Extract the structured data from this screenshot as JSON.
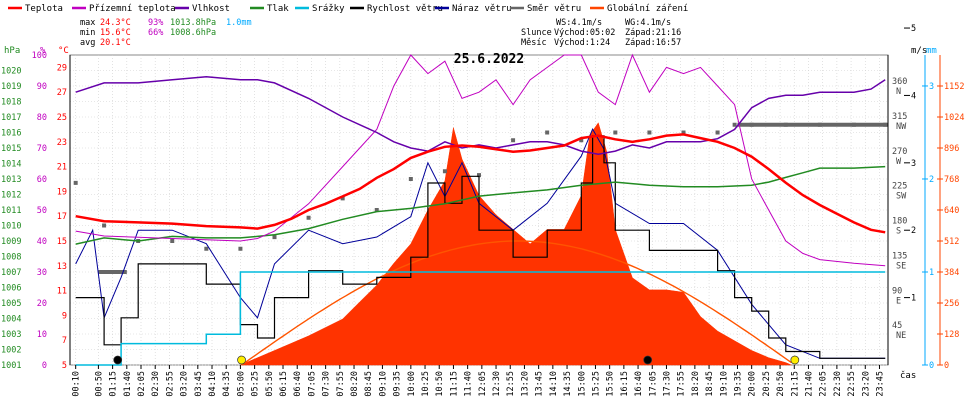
{
  "chart_data": {
    "type": "line",
    "title": "25.6.2022",
    "x_axis": {
      "label": "čas",
      "ticks": [
        "00:10",
        "00:50",
        "01:15",
        "01:40",
        "02:05",
        "02:30",
        "02:55",
        "03:20",
        "03:45",
        "04:10",
        "04:35",
        "05:00",
        "05:25",
        "05:50",
        "06:15",
        "06:40",
        "07:05",
        "07:30",
        "07:55",
        "08:20",
        "08:45",
        "09:10",
        "09:35",
        "10:00",
        "10:25",
        "10:50",
        "11:15",
        "11:40",
        "12:05",
        "12:30",
        "12:55",
        "13:20",
        "13:45",
        "14:10",
        "14:35",
        "15:00",
        "15:25",
        "15:50",
        "16:15",
        "16:40",
        "17:05",
        "17:30",
        "17:55",
        "18:20",
        "18:45",
        "19:10",
        "19:35",
        "20:00",
        "20:25",
        "20:50",
        "21:15",
        "21:40",
        "22:05",
        "22:30",
        "22:55",
        "23:20",
        "23:45"
      ]
    },
    "axes": {
      "pressure": {
        "label": "hPa",
        "color": "#228B22",
        "range": [
          1001,
          1021
        ],
        "ticks": [
          "1001",
          "1002",
          "1003",
          "1004",
          "1005",
          "1006",
          "1007",
          "1008",
          "1009",
          "1010",
          "1011",
          "1012",
          "1013",
          "1014",
          "1015",
          "1016",
          "1017",
          "1018",
          "1019",
          "1020"
        ]
      },
      "humidity": {
        "label": "%",
        "color": "#c000c0",
        "range": [
          0,
          100
        ],
        "ticks": [
          "0",
          "10",
          "20",
          "30",
          "40",
          "50",
          "60",
          "70",
          "80",
          "90",
          "100"
        ]
      },
      "temperature": {
        "label": "°C",
        "color": "#ff0000",
        "range": [
          5,
          30
        ],
        "ticks": [
          "5",
          "7",
          "9",
          "11",
          "13",
          "15",
          "17",
          "19",
          "21",
          "23",
          "25",
          "27",
          "29"
        ]
      },
      "wind_dir": {
        "ticks": [
          "360 N",
          "315 NW",
          "270 W",
          "225 SW",
          "180 S",
          "135 SE",
          "90 E",
          "45 NE"
        ]
      },
      "wind_speed": {
        "label": "m/s",
        "ticks": [
          "1",
          "2",
          "3",
          "4",
          "5"
        ]
      },
      "precip": {
        "label": "mm",
        "color": "#00aaff",
        "ticks": [
          "0",
          "1",
          "2",
          "3"
        ]
      },
      "radiation": {
        "color": "#ff4500",
        "ticks": [
          "0",
          "128",
          "256",
          "384",
          "512",
          "640",
          "768",
          "896",
          "1024",
          "1152"
        ]
      }
    },
    "legend": [
      {
        "name": "Teplota",
        "color": "#ff0000"
      },
      {
        "name": "Přízemní teplota",
        "color": "#c000c0"
      },
      {
        "name": "Vlhkost",
        "color": "#6600aa"
      },
      {
        "name": "Tlak",
        "color": "#228B22"
      },
      {
        "name": "Srážky",
        "color": "#00bbdd"
      },
      {
        "name": "Rychlost větru",
        "color": "#000000"
      },
      {
        "name": "Náraz větru",
        "color": "#000099"
      },
      {
        "name": "Směr větru",
        "color": "#666666"
      },
      {
        "name": "Globální záření",
        "color": "#ff4500"
      }
    ],
    "stats": [
      [
        "max",
        "24.3°C",
        "93%",
        "1013.8hPa",
        "1.0mm"
      ],
      [
        "min",
        "15.6°C",
        "66%",
        "1008.6hPa",
        ""
      ],
      [
        "avg",
        "20.1°C",
        "",
        "",
        ""
      ]
    ],
    "wind_info": {
      "ws": "WS:4.1m/s",
      "wg": "WG:4.1m/s"
    },
    "sun_moon": {
      "sun": {
        "label": "Slunce",
        "rise": "Východ:05:02",
        "set": "Západ:21:16"
      },
      "moon": {
        "label": "Měsíc",
        "rise": "Východ:1:24",
        "set": "Západ:16:57"
      }
    },
    "series": [
      {
        "name": "Teplota",
        "unit": "°C",
        "x": [
          "00:10",
          "01:00",
          "02:00",
          "03:00",
          "04:00",
          "05:00",
          "05:30",
          "06:00",
          "06:30",
          "07:00",
          "07:30",
          "08:00",
          "08:30",
          "09:00",
          "09:30",
          "10:00",
          "10:30",
          "11:00",
          "11:30",
          "12:00",
          "12:30",
          "13:00",
          "13:30",
          "14:00",
          "14:30",
          "15:00",
          "15:30",
          "16:00",
          "16:30",
          "17:00",
          "17:30",
          "18:00",
          "18:30",
          "19:00",
          "19:30",
          "20:00",
          "20:30",
          "21:00",
          "21:30",
          "22:00",
          "22:30",
          "23:00",
          "23:30",
          "23:55"
        ],
        "values": [
          17.0,
          16.6,
          16.5,
          16.4,
          16.2,
          16.1,
          16.0,
          16.3,
          16.8,
          17.5,
          18.0,
          18.6,
          19.2,
          20.1,
          20.8,
          21.7,
          22.2,
          22.6,
          22.7,
          22.6,
          22.4,
          22.2,
          22.3,
          22.5,
          22.7,
          23.3,
          23.5,
          23.2,
          23.0,
          23.2,
          23.5,
          23.6,
          23.3,
          23.0,
          22.5,
          21.8,
          20.8,
          19.7,
          18.7,
          17.9,
          17.2,
          16.5,
          15.9,
          15.7
        ]
      },
      {
        "name": "Přízemní teplota",
        "unit": "°C",
        "x": [
          "00:10",
          "01:00",
          "02:00",
          "03:00",
          "04:00",
          "05:00",
          "05:30",
          "06:00",
          "07:00",
          "08:00",
          "09:00",
          "09:30",
          "10:00",
          "10:30",
          "11:00",
          "11:30",
          "12:00",
          "12:30",
          "13:00",
          "13:30",
          "14:00",
          "14:30",
          "15:00",
          "15:30",
          "16:00",
          "16:30",
          "17:00",
          "17:30",
          "18:00",
          "18:30",
          "19:00",
          "19:30",
          "20:00",
          "20:30",
          "21:00",
          "21:30",
          "22:00",
          "23:00",
          "23:55"
        ],
        "values": [
          15.8,
          15.4,
          15.3,
          15.2,
          15.1,
          15.0,
          15.2,
          15.8,
          18.0,
          21.0,
          24.0,
          27.5,
          30.0,
          28.5,
          29.5,
          26.5,
          27.0,
          28.0,
          26.0,
          28.0,
          29.0,
          30.0,
          30.0,
          27.0,
          26.0,
          30.0,
          27.0,
          29.0,
          28.5,
          29.0,
          27.5,
          26.0,
          20.0,
          17.5,
          15.0,
          14.0,
          13.5,
          13.2,
          13.0
        ]
      },
      {
        "name": "Vlhkost",
        "unit": "%",
        "x": [
          "00:10",
          "01:00",
          "02:00",
          "03:00",
          "04:00",
          "05:00",
          "05:30",
          "06:00",
          "07:00",
          "08:00",
          "09:00",
          "09:30",
          "10:00",
          "10:30",
          "11:00",
          "11:30",
          "12:00",
          "12:30",
          "13:00",
          "13:30",
          "14:00",
          "14:30",
          "15:00",
          "15:30",
          "16:00",
          "16:30",
          "17:00",
          "17:30",
          "18:00",
          "18:30",
          "19:00",
          "19:30",
          "20:00",
          "20:30",
          "21:00",
          "21:30",
          "22:00",
          "22:30",
          "23:00",
          "23:30",
          "23:55"
        ],
        "values": [
          88,
          91,
          91,
          92,
          93,
          92,
          92,
          91,
          86,
          80,
          75,
          72,
          70,
          69,
          72,
          70,
          71,
          70,
          71,
          72,
          72,
          71,
          69,
          68,
          69,
          71,
          70,
          72,
          72,
          72,
          73,
          76,
          83,
          86,
          87,
          87,
          88,
          88,
          88,
          89,
          92
        ]
      },
      {
        "name": "Tlak",
        "unit": "hPa",
        "x": [
          "00:10",
          "01:00",
          "02:00",
          "03:00",
          "04:00",
          "05:00",
          "05:30",
          "06:00",
          "07:00",
          "08:00",
          "09:00",
          "10:00",
          "11:00",
          "12:00",
          "13:00",
          "14:00",
          "15:00",
          "16:00",
          "17:00",
          "18:00",
          "19:00",
          "20:00",
          "20:30",
          "21:00",
          "21:30",
          "22:00",
          "22:30",
          "23:00",
          "23:55"
        ],
        "values": [
          1008.8,
          1009.2,
          1009.0,
          1009.3,
          1009.2,
          1009.2,
          1009.3,
          1009.4,
          1009.8,
          1010.4,
          1010.9,
          1011.1,
          1011.4,
          1011.9,
          1012.1,
          1012.3,
          1012.6,
          1012.8,
          1012.6,
          1012.5,
          1012.5,
          1012.6,
          1012.8,
          1013.1,
          1013.4,
          1013.7,
          1013.7,
          1013.7,
          1013.8
        ]
      },
      {
        "name": "Srážky",
        "unit": "mm",
        "x": [
          "00:10",
          "01:20",
          "01:30",
          "03:30",
          "04:00",
          "05:00",
          "06:00",
          "09:00",
          "12:00",
          "15:00",
          "18:00",
          "21:00",
          "23:55"
        ],
        "values": [
          0.0,
          0.0,
          0.23,
          0.23,
          0.33,
          1.0,
          1.0,
          1.0,
          1.0,
          1.0,
          1.0,
          1.0,
          1.0
        ]
      },
      {
        "name": "Globální záření",
        "unit": "W/m²",
        "x": [
          "05:00",
          "06:00",
          "07:00",
          "08:00",
          "08:30",
          "09:00",
          "09:30",
          "10:00",
          "10:30",
          "11:00",
          "11:15",
          "11:30",
          "12:00",
          "12:30",
          "13:00",
          "13:30",
          "14:00",
          "14:30",
          "15:00",
          "15:15",
          "15:30",
          "15:45",
          "16:00",
          "16:30",
          "17:00",
          "17:30",
          "18:00",
          "18:30",
          "19:00",
          "19:30",
          "20:00",
          "20:30",
          "21:00",
          "21:10"
        ],
        "values": [
          0,
          60,
          120,
          190,
          260,
          330,
          420,
          500,
          640,
          760,
          980,
          850,
          700,
          620,
          560,
          500,
          560,
          560,
          700,
          950,
          1000,
          880,
          560,
          360,
          310,
          310,
          300,
          200,
          140,
          100,
          60,
          30,
          10,
          0
        ]
      },
      {
        "name": "Rychlost větru",
        "unit": "m/s",
        "x": [
          "00:10",
          "01:00",
          "01:30",
          "02:00",
          "03:00",
          "04:00",
          "05:00",
          "05:30",
          "06:00",
          "07:00",
          "08:00",
          "09:00",
          "10:00",
          "10:30",
          "11:00",
          "11:30",
          "12:00",
          "13:00",
          "14:00",
          "15:00",
          "15:20",
          "15:40",
          "16:00",
          "17:00",
          "18:00",
          "19:00",
          "19:30",
          "20:00",
          "20:30",
          "21:00",
          "22:00",
          "23:00",
          "23:55"
        ],
        "values": [
          1.0,
          0.3,
          0.7,
          1.5,
          1.5,
          1.2,
          0.6,
          0.4,
          1.0,
          1.4,
          1.2,
          1.3,
          1.6,
          2.7,
          2.4,
          2.8,
          2.0,
          1.6,
          2.0,
          2.7,
          3.4,
          3.0,
          2.0,
          1.7,
          1.7,
          1.4,
          1.0,
          0.8,
          0.4,
          0.2,
          0.1,
          0.1,
          0.1
        ]
      },
      {
        "name": "Náraz větru",
        "unit": "m/s",
        "x": [
          "00:10",
          "00:40",
          "01:00",
          "01:30",
          "02:00",
          "03:00",
          "04:00",
          "05:00",
          "05:30",
          "06:00",
          "07:00",
          "08:00",
          "09:00",
          "10:00",
          "10:30",
          "11:00",
          "11:30",
          "12:00",
          "13:00",
          "14:00",
          "15:00",
          "15:20",
          "15:40",
          "16:00",
          "17:00",
          "18:00",
          "19:00",
          "20:00",
          "20:30",
          "21:00",
          "22:00",
          "23:55"
        ],
        "values": [
          1.5,
          2.0,
          0.7,
          1.3,
          2.0,
          2.0,
          1.8,
          1.0,
          0.7,
          1.5,
          2.0,
          1.8,
          1.9,
          2.2,
          3.0,
          2.5,
          3.0,
          2.4,
          2.0,
          2.4,
          3.1,
          3.5,
          3.2,
          2.4,
          2.1,
          2.1,
          1.7,
          0.9,
          0.6,
          0.3,
          0.1,
          0.1
        ]
      },
      {
        "name": "Směr větru",
        "unit": "°",
        "x": [
          "00:10",
          "01:00",
          "01:30",
          "02:00",
          "03:00",
          "04:00",
          "05:00",
          "06:00",
          "07:00",
          "08:00",
          "09:00",
          "10:00",
          "11:00",
          "12:00",
          "13:00",
          "14:00",
          "15:00",
          "16:00",
          "17:00",
          "18:00",
          "19:00",
          "19:30",
          "20:00",
          "21:00",
          "22:00",
          "23:00",
          "23:55"
        ],
        "values": [
          235,
          180,
          120,
          160,
          160,
          150,
          150,
          165,
          190,
          215,
          200,
          240,
          250,
          245,
          290,
          300,
          290,
          300,
          300,
          300,
          300,
          310,
          310,
          310,
          310,
          310,
          310
        ]
      }
    ],
    "events": [
      {
        "type": "moonrise",
        "time": "01:24",
        "color": "#000000"
      },
      {
        "type": "sunrise",
        "time": "05:02",
        "color": "#ffee00"
      },
      {
        "type": "moonset",
        "time": "16:57",
        "color": "#000000"
      },
      {
        "type": "sunset",
        "time": "21:16",
        "color": "#ffee00"
      }
    ],
    "grid": true
  }
}
